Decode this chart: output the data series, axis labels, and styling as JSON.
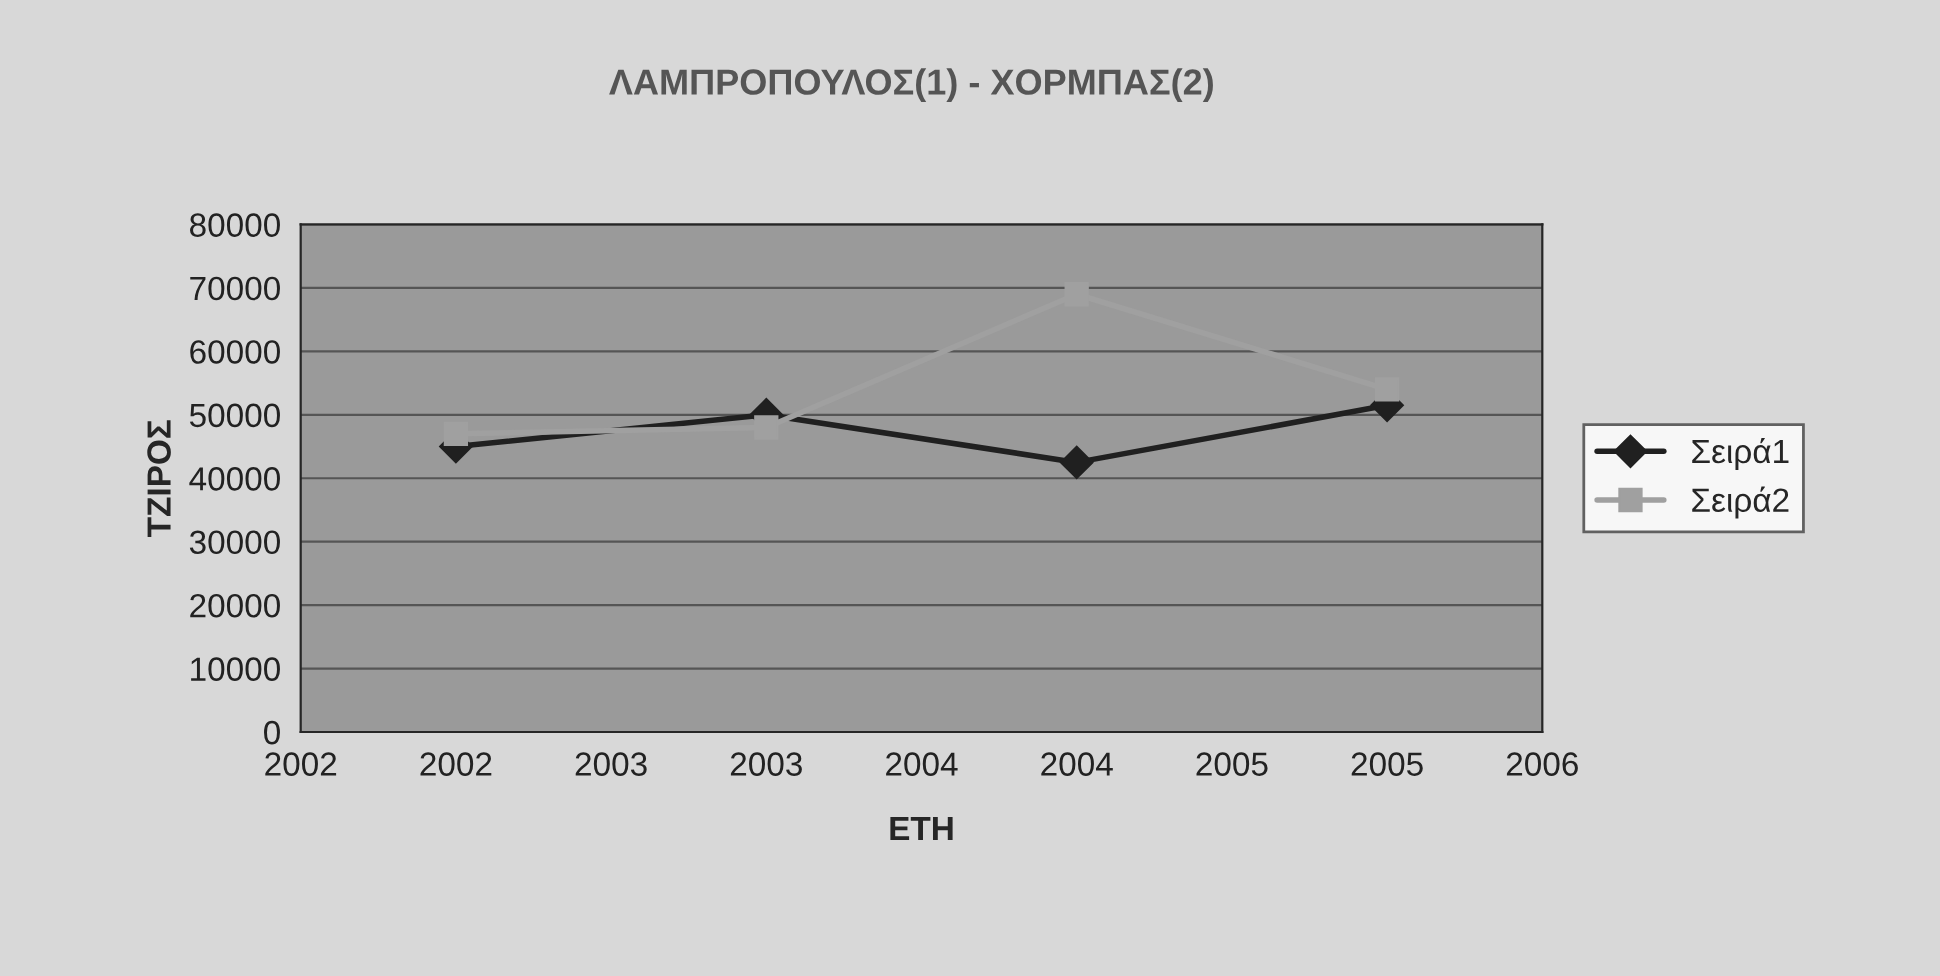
{
  "chart_data": {
    "type": "line",
    "title": "ΛΑΜΠΡΟΠΟΥΛΟΣ(1) - ΧΟΡΜΠΑΣ(2)",
    "xlabel": "ΕΤΗ",
    "ylabel": "ΤΖΙΡΟΣ",
    "x": [
      2002,
      2003,
      2004,
      2005
    ],
    "series": [
      {
        "name": "Σειρά1",
        "color": "#202020",
        "marker": "diamond",
        "values": [
          45000,
          50000,
          42500,
          51500
        ]
      },
      {
        "name": "Σειρά2",
        "color": "#a0a0a0",
        "marker": "square",
        "values": [
          47000,
          48000,
          69000,
          54000
        ]
      }
    ],
    "xlim": [
      2001.5,
      2005.5
    ],
    "xticks": [
      {
        "value": 2001.5,
        "label": "2002"
      },
      2002,
      {
        "value": 2002.5,
        "label": "2003"
      },
      2003,
      {
        "value": 2003.5,
        "label": "2004"
      },
      2004,
      {
        "value": 2004.5,
        "label": "2005"
      },
      2005,
      {
        "value": 2005.5,
        "label": "2006"
      }
    ],
    "ylim": [
      0,
      80000
    ],
    "yticks": [
      0,
      10000,
      20000,
      30000,
      40000,
      50000,
      60000,
      70000,
      80000
    ],
    "grid": "y",
    "legend": "right"
  }
}
